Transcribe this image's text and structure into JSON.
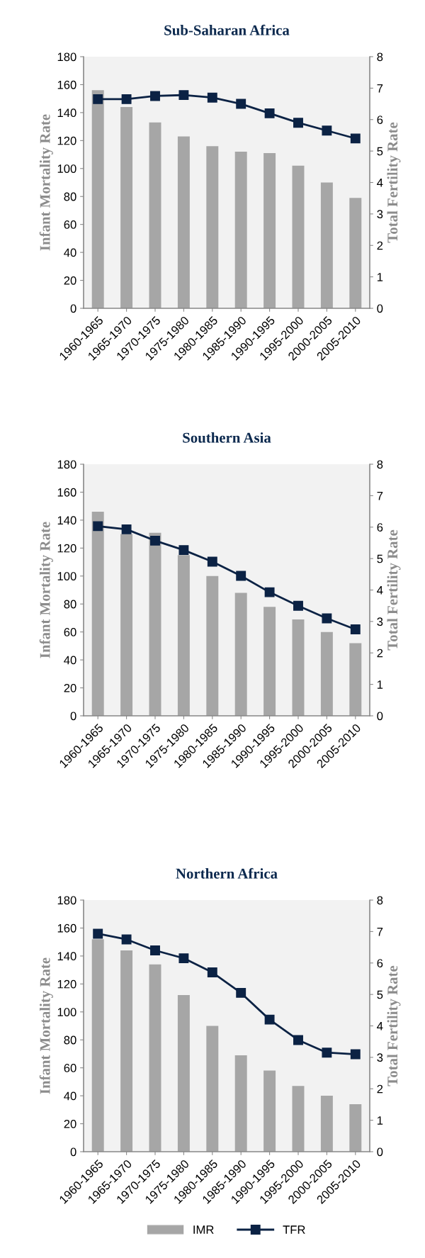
{
  "chart_data": [
    {
      "type": "bar",
      "title": "Sub-Saharan Africa",
      "ylabel": "Infant Mortality Rate",
      "y2label": "Total Fertility Rate",
      "categories": [
        "1960-1965",
        "1965-1970",
        "1970-1975",
        "1975-1980",
        "1980-1985",
        "1985-1990",
        "1990-1995",
        "1995-2000",
        "2000-2005",
        "2005-2010"
      ],
      "series": [
        {
          "color": "#a6a6a6",
          "values": [
            156,
            144,
            133,
            123,
            116,
            112,
            111,
            102,
            90,
            79
          ]
        },
        {
          "type": "line",
          "axis": "y2",
          "color": "#0b2244",
          "marker": "square",
          "values": [
            6.65,
            6.65,
            6.75,
            6.78,
            6.7,
            6.5,
            6.2,
            5.9,
            5.65,
            5.4
          ]
        }
      ],
      "ylim": [
        0,
        180
      ],
      "yticks": [
        0,
        20,
        40,
        60,
        80,
        100,
        120,
        140,
        160,
        180
      ],
      "y2lim": [
        0,
        8
      ],
      "y2ticks": [
        0,
        1,
        2,
        3,
        4,
        5,
        6,
        7,
        8
      ],
      "grid": false
    },
    {
      "type": "bar",
      "title": "Southern Asia",
      "ylabel": "Infant Mortality Rate",
      "y2label": "Total Fertility Rate",
      "categories": [
        "1960-1965",
        "1965-1970",
        "1970-1975",
        "1975-1980",
        "1980-1985",
        "1985-1990",
        "1990-1995",
        "1995-2000",
        "2000-2005",
        "2005-2010"
      ],
      "series": [
        {
          "color": "#a6a6a6",
          "values": [
            146,
            130,
            131,
            115,
            100,
            88,
            78,
            69,
            60,
            52
          ]
        },
        {
          "type": "line",
          "axis": "y2",
          "color": "#0b2244",
          "marker": "square",
          "values": [
            6.03,
            5.93,
            5.57,
            5.27,
            4.9,
            4.45,
            3.93,
            3.5,
            3.1,
            2.75
          ]
        }
      ],
      "ylim": [
        0,
        180
      ],
      "yticks": [
        0,
        20,
        40,
        60,
        80,
        100,
        120,
        140,
        160,
        180
      ],
      "y2lim": [
        0,
        8
      ],
      "y2ticks": [
        0,
        1,
        2,
        3,
        4,
        5,
        6,
        7,
        8
      ],
      "grid": false
    },
    {
      "type": "bar",
      "title": "Northern Africa",
      "ylabel": "Infant Mortality Rate",
      "y2label": "Total Fertility Rate",
      "categories": [
        "1960-1965",
        "1965-1970",
        "1970-1975",
        "1975-1980",
        "1980-1985",
        "1985-1990",
        "1990-1995",
        "1995-2000",
        "2000-2005",
        "2005-2010"
      ],
      "series": [
        {
          "name": "IMR",
          "color": "#a6a6a6",
          "values": [
            152,
            144,
            134,
            112,
            90,
            69,
            58,
            47,
            40,
            34
          ]
        },
        {
          "type": "line",
          "name": "TFR",
          "axis": "y2",
          "color": "#0b2244",
          "marker": "square",
          "values": [
            6.93,
            6.75,
            6.4,
            6.15,
            5.7,
            5.05,
            4.2,
            3.55,
            3.15,
            3.1
          ]
        }
      ],
      "ylim": [
        0,
        180
      ],
      "yticks": [
        0,
        20,
        40,
        60,
        80,
        100,
        120,
        140,
        160,
        180
      ],
      "y2lim": [
        0,
        8
      ],
      "y2ticks": [
        0,
        1,
        2,
        3,
        4,
        5,
        6,
        7,
        8
      ],
      "grid": false,
      "legend": "bottom"
    }
  ]
}
